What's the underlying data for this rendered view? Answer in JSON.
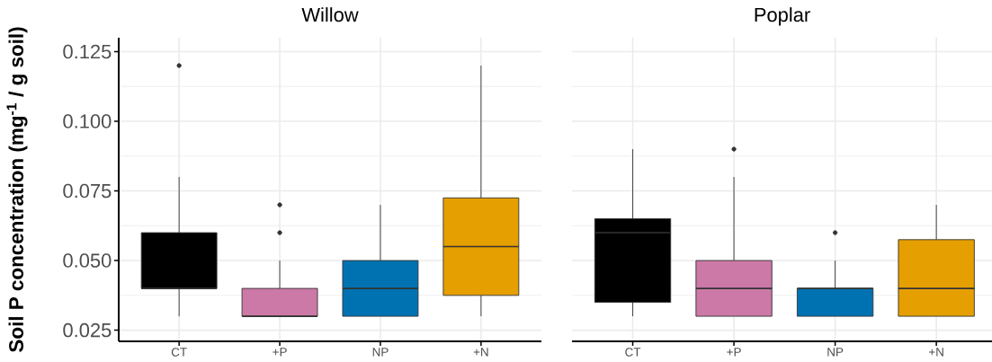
{
  "chart_data": [
    {
      "type": "box",
      "title": "Willow",
      "ylabel": "Soil P concentration (mg$^{-1}$ / g soil)",
      "categories": [
        "CT",
        "+P",
        "NP",
        "+N"
      ],
      "colors": [
        "#000000",
        "#cc79a7",
        "#0072b2",
        "#e69f00"
      ],
      "boxes": [
        {
          "low": 0.03,
          "q1": 0.04,
          "median": 0.04,
          "q3": 0.06,
          "high": 0.08,
          "outliers": [
            0.12
          ]
        },
        {
          "low": 0.03,
          "q1": 0.03,
          "median": 0.03,
          "q3": 0.04,
          "high": 0.05,
          "outliers": [
            0.06,
            0.07
          ]
        },
        {
          "low": 0.03,
          "q1": 0.03,
          "median": 0.04,
          "q3": 0.05,
          "high": 0.07
        },
        {
          "low": 0.03,
          "q1": 0.0375,
          "median": 0.055,
          "q3": 0.0725,
          "high": 0.12
        }
      ],
      "ylim": [
        0.021,
        0.13
      ],
      "yticks": [
        0.025,
        {
          "value": 0.05,
          "label": "0.050"
        },
        0.075,
        {
          "value": 0.1,
          "label": "0.100"
        },
        0.125
      ],
      "grid": true
    },
    {
      "type": "box",
      "title": "Poplar",
      "categories": [
        "CT",
        "+P",
        "NP",
        "+N"
      ],
      "colors": [
        "#000000",
        "#cc79a7",
        "#0072b2",
        "#e69f00"
      ],
      "boxes": [
        {
          "low": 0.03,
          "q1": 0.035,
          "median": 0.06,
          "q3": 0.065,
          "high": 0.09
        },
        {
          "low": 0.03,
          "q1": 0.03,
          "median": 0.04,
          "q3": 0.05,
          "high": 0.08,
          "outliers": [
            0.09
          ]
        },
        {
          "low": 0.03,
          "q1": 0.03,
          "median": 0.04,
          "q3": 0.04,
          "high": 0.05,
          "outliers": [
            0.06
          ]
        },
        {
          "low": 0.03,
          "q1": 0.03,
          "median": 0.04,
          "q3": 0.0575,
          "high": 0.07
        }
      ],
      "ylim": [
        0.021,
        0.13
      ],
      "yticks": [
        0.025,
        0.05,
        0.075,
        0.1,
        0.125
      ],
      "grid": true,
      "tick_labels": "x"
    }
  ]
}
